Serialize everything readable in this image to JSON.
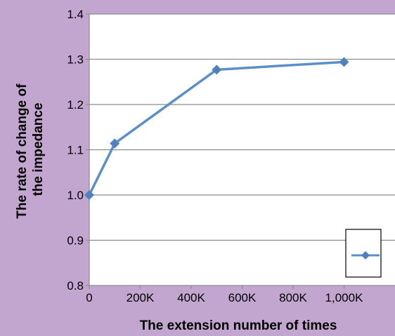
{
  "chart_data": {
    "type": "line",
    "title": "",
    "xlabel": "The extension number of times",
    "ylabel": [
      "The rate of change of",
      "the impedance"
    ],
    "x": [
      0,
      100000,
      500000,
      1000000
    ],
    "series": [
      {
        "values": [
          1.0,
          1.114,
          1.277,
          1.294
        ]
      }
    ],
    "xlim": [
      0,
      1200000
    ],
    "ylim": [
      0.8,
      1.4
    ],
    "x_ticks": [
      0,
      200000,
      400000,
      600000,
      800000,
      1000000
    ],
    "x_tick_labels": [
      "0",
      "200K",
      "400K",
      "600K",
      "800K",
      "1,000K"
    ],
    "y_ticks": [
      0.8,
      0.9,
      1.0,
      1.1,
      1.2,
      1.3,
      1.4
    ],
    "y_tick_labels": [
      "0.8",
      "0.9",
      "1.0",
      "1.1",
      "1.2",
      "1.3",
      "1.4"
    ],
    "grid": {
      "horizontal": true,
      "vertical": false
    },
    "legend": {
      "position": "bottom-right",
      "entries": [
        ""
      ]
    },
    "colors": {
      "background": "#c2a6cf",
      "plot_area": "#ffffff",
      "line": "#5b8fc9",
      "marker": "#4f81bd",
      "gridline": "#8c8c8c"
    }
  }
}
